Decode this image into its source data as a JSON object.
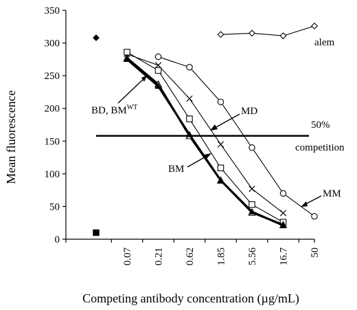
{
  "chart_data": {
    "type": "line",
    "title": "",
    "xlabel": "Competing antibody concentration (µg/mL)",
    "ylabel": "Mean fluorescence",
    "categories": [
      "0.07",
      "0.21",
      "0.62",
      "1.85",
      "5.56",
      "16.7",
      "50"
    ],
    "ylim": [
      0,
      350
    ],
    "yticks": [
      0,
      50,
      100,
      150,
      200,
      250,
      300,
      350
    ],
    "grid": false,
    "reference_points": [
      {
        "marker": "diamond-filled",
        "value": 308
      },
      {
        "marker": "square-filled",
        "value": 10
      }
    ],
    "series": [
      {
        "name": "alem",
        "marker": "diamond",
        "x": [
          "1.85",
          "5.56",
          "16.7",
          "50"
        ],
        "values": [
          313,
          315,
          311,
          326
        ]
      },
      {
        "name": "MM",
        "marker": "circle",
        "x": [
          "0.21",
          "0.62",
          "1.85",
          "5.56",
          "16.7",
          "50"
        ],
        "values": [
          279,
          263,
          210,
          140,
          70,
          35
        ]
      },
      {
        "name": "MD",
        "marker": "x",
        "x": [
          "0.07",
          "0.21",
          "0.62",
          "1.85",
          "5.56",
          "16.7"
        ],
        "values": [
          283,
          266,
          215,
          145,
          77,
          40
        ]
      },
      {
        "name": "",
        "marker": "square",
        "x": [
          "0.07",
          "0.21",
          "0.62",
          "1.85",
          "5.56",
          "16.7"
        ],
        "values": [
          286,
          258,
          184,
          109,
          53,
          26
        ]
      },
      {
        "name": "BD, BM",
        "marker": "triangle",
        "bold": true,
        "x": [
          "0.07",
          "0.21",
          "0.62",
          "1.85",
          "5.56",
          "16.7"
        ],
        "values": [
          277,
          237,
          158,
          90,
          41,
          22
        ]
      },
      {
        "name": "BM",
        "marker": "filled-triangle",
        "bold": true,
        "x": [
          "0.07",
          "0.21",
          "0.62",
          "1.85",
          "5.56",
          "16.7"
        ],
        "values": [
          275,
          234,
          160,
          90,
          42,
          21
        ]
      }
    ],
    "reference_line": {
      "y": 158,
      "label_lines": [
        "50%",
        "competition"
      ]
    },
    "annotations": [
      {
        "text": "alem"
      },
      {
        "text": "MM"
      },
      {
        "text": "MD"
      },
      {
        "text": "BM"
      },
      {
        "text": "BD, BM",
        "superscript": "WT"
      }
    ]
  }
}
